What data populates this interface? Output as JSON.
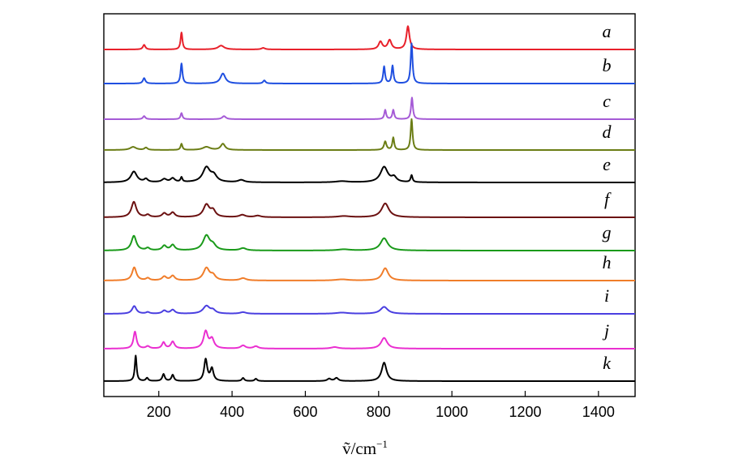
{
  "chart_data": {
    "type": "line",
    "xlabel": "ṽ/cm⁻¹",
    "xlabel_parts": {
      "symbol": "ṽ",
      "unit": "/cm",
      "exponent": "−1"
    },
    "xlim": [
      50,
      1500
    ],
    "xticks": [
      200,
      400,
      600,
      800,
      1000,
      1200,
      1400
    ],
    "yaxis": "stacked offset spectra, no numeric scale",
    "grid": false,
    "series": [
      {
        "name": "a",
        "color": "#e8202a",
        "peaks": [
          [
            160,
            0.06,
            4
          ],
          [
            262,
            0.22,
            3
          ],
          [
            370,
            0.05,
            10
          ],
          [
            485,
            0.02,
            6
          ],
          [
            805,
            0.1,
            6
          ],
          [
            830,
            0.12,
            6
          ],
          [
            880,
            0.3,
            5
          ]
        ]
      },
      {
        "name": "b",
        "color": "#1f4fe0",
        "peaks": [
          [
            160,
            0.07,
            4
          ],
          [
            262,
            0.26,
            3
          ],
          [
            375,
            0.13,
            8
          ],
          [
            488,
            0.04,
            4
          ],
          [
            815,
            0.22,
            3
          ],
          [
            838,
            0.23,
            3
          ],
          [
            890,
            0.52,
            3
          ]
        ]
      },
      {
        "name": "c",
        "color": "#a55ad6",
        "peaks": [
          [
            160,
            0.04,
            4
          ],
          [
            262,
            0.08,
            3
          ],
          [
            378,
            0.04,
            6
          ],
          [
            818,
            0.12,
            3
          ],
          [
            840,
            0.12,
            3
          ],
          [
            891,
            0.28,
            3
          ]
        ]
      },
      {
        "name": "d",
        "color": "#6b7d15",
        "peaks": [
          [
            130,
            0.04,
            10
          ],
          [
            165,
            0.03,
            5
          ],
          [
            262,
            0.08,
            3
          ],
          [
            330,
            0.04,
            12
          ],
          [
            375,
            0.08,
            7
          ],
          [
            818,
            0.11,
            4
          ],
          [
            840,
            0.16,
            3
          ],
          [
            890,
            0.4,
            3
          ]
        ]
      },
      {
        "name": "e",
        "color": "#000000",
        "peaks": [
          [
            132,
            0.14,
            10
          ],
          [
            165,
            0.04,
            6
          ],
          [
            215,
            0.04,
            8
          ],
          [
            238,
            0.05,
            7
          ],
          [
            262,
            0.06,
            3
          ],
          [
            330,
            0.19,
            12
          ],
          [
            350,
            0.08,
            10
          ],
          [
            425,
            0.03,
            10
          ],
          [
            700,
            0.015,
            20
          ],
          [
            815,
            0.2,
            12
          ],
          [
            842,
            0.06,
            8
          ],
          [
            890,
            0.09,
            3
          ]
        ]
      },
      {
        "name": "f",
        "color": "#6b1010",
        "peaks": [
          [
            132,
            0.2,
            8
          ],
          [
            170,
            0.03,
            6
          ],
          [
            215,
            0.05,
            7
          ],
          [
            238,
            0.06,
            7
          ],
          [
            330,
            0.16,
            10
          ],
          [
            348,
            0.08,
            8
          ],
          [
            428,
            0.03,
            10
          ],
          [
            470,
            0.02,
            10
          ],
          [
            705,
            0.015,
            20
          ],
          [
            818,
            0.18,
            12
          ]
        ]
      },
      {
        "name": "g",
        "color": "#1a9a1a",
        "peaks": [
          [
            132,
            0.19,
            8
          ],
          [
            170,
            0.03,
            6
          ],
          [
            215,
            0.06,
            7
          ],
          [
            238,
            0.07,
            7
          ],
          [
            330,
            0.19,
            11
          ],
          [
            348,
            0.06,
            9
          ],
          [
            430,
            0.03,
            10
          ],
          [
            705,
            0.015,
            20
          ],
          [
            815,
            0.16,
            12
          ]
        ]
      },
      {
        "name": "h",
        "color": "#f07d2a",
        "peaks": [
          [
            133,
            0.17,
            7
          ],
          [
            170,
            0.03,
            6
          ],
          [
            215,
            0.05,
            7
          ],
          [
            238,
            0.06,
            7
          ],
          [
            330,
            0.16,
            10
          ],
          [
            348,
            0.06,
            8
          ],
          [
            430,
            0.03,
            10
          ],
          [
            700,
            0.015,
            20
          ],
          [
            818,
            0.16,
            10
          ]
        ]
      },
      {
        "name": "i",
        "color": "#4a3fe0",
        "peaks": [
          [
            133,
            0.1,
            7
          ],
          [
            170,
            0.02,
            6
          ],
          [
            215,
            0.04,
            7
          ],
          [
            238,
            0.05,
            7
          ],
          [
            330,
            0.1,
            11
          ],
          [
            348,
            0.04,
            8
          ],
          [
            430,
            0.02,
            10
          ],
          [
            700,
            0.015,
            20
          ],
          [
            815,
            0.09,
            12
          ]
        ]
      },
      {
        "name": "j",
        "color": "#ea2fd0",
        "peaks": [
          [
            135,
            0.22,
            5
          ],
          [
            170,
            0.03,
            6
          ],
          [
            213,
            0.08,
            5
          ],
          [
            238,
            0.09,
            6
          ],
          [
            328,
            0.22,
            7
          ],
          [
            345,
            0.12,
            7
          ],
          [
            430,
            0.04,
            8
          ],
          [
            465,
            0.03,
            8
          ],
          [
            680,
            0.02,
            12
          ],
          [
            815,
            0.14,
            10
          ]
        ]
      },
      {
        "name": "k",
        "color": "#000000",
        "peaks": [
          [
            137,
            0.33,
            3
          ],
          [
            168,
            0.04,
            4
          ],
          [
            213,
            0.09,
            4
          ],
          [
            238,
            0.08,
            4
          ],
          [
            328,
            0.28,
            5
          ],
          [
            345,
            0.16,
            5
          ],
          [
            430,
            0.04,
            4
          ],
          [
            465,
            0.03,
            4
          ],
          [
            665,
            0.03,
            6
          ],
          [
            685,
            0.04,
            6
          ],
          [
            815,
            0.24,
            8
          ]
        ]
      }
    ]
  }
}
